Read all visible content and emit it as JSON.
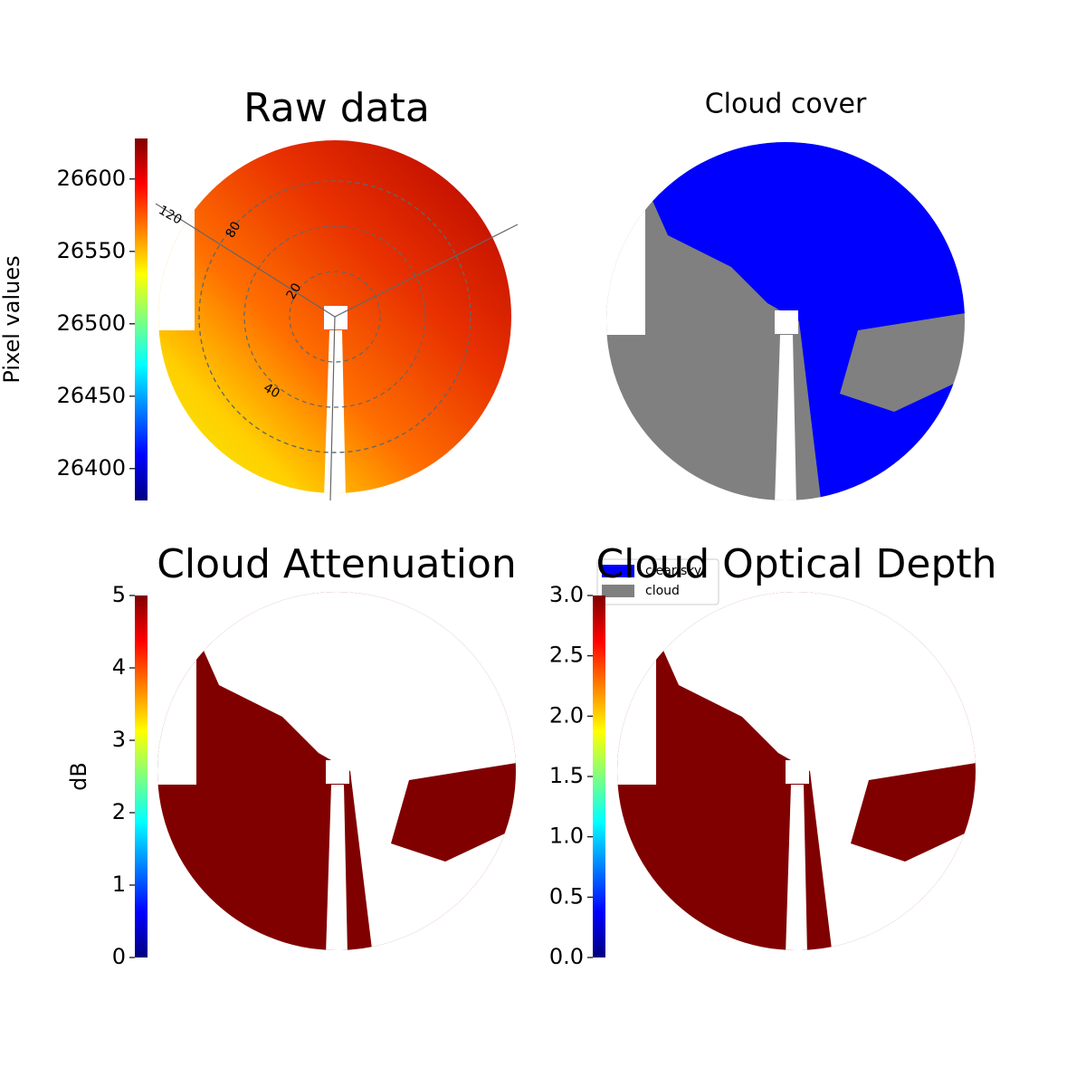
{
  "chart_data": [
    {
      "type": "image",
      "title": "Raw data",
      "colormap": "jet",
      "colorbar_label": "Pixel values",
      "clim": [
        26378,
        26628
      ],
      "cticks": [
        26400,
        26450,
        26500,
        26550,
        26600
      ],
      "annotations": [
        "120",
        "80",
        "20",
        "40"
      ],
      "fill": "raw"
    },
    {
      "type": "image",
      "title": "Cloud cover",
      "fill": "mask",
      "series": [
        {
          "name": "clear sky",
          "color": "#0000ff"
        },
        {
          "name": "cloud",
          "color": "#808080"
        }
      ]
    },
    {
      "type": "image",
      "title": "Cloud Attenuation",
      "colormap": "jet",
      "colorbar_label": "dB",
      "clim": [
        0,
        5
      ],
      "cticks": [
        0,
        1,
        2,
        3,
        4,
        5
      ],
      "fill": "cloud",
      "color": "#800000"
    },
    {
      "type": "image",
      "title": "Cloud Optical Depth",
      "colormap": "jet",
      "clim": [
        0,
        3
      ],
      "cticks": [
        {
          "value": 0,
          "label": "0.0"
        },
        {
          "value": 0.5,
          "label": "0.5"
        },
        {
          "value": 1,
          "label": "1.0"
        },
        {
          "value": 1.5,
          "label": "1.5"
        },
        {
          "value": 2,
          "label": "2.0"
        },
        {
          "value": 2.5,
          "label": "2.5"
        },
        {
          "value": 3,
          "label": "3.0"
        }
      ],
      "fill": "cloud",
      "color": "#800000"
    }
  ]
}
